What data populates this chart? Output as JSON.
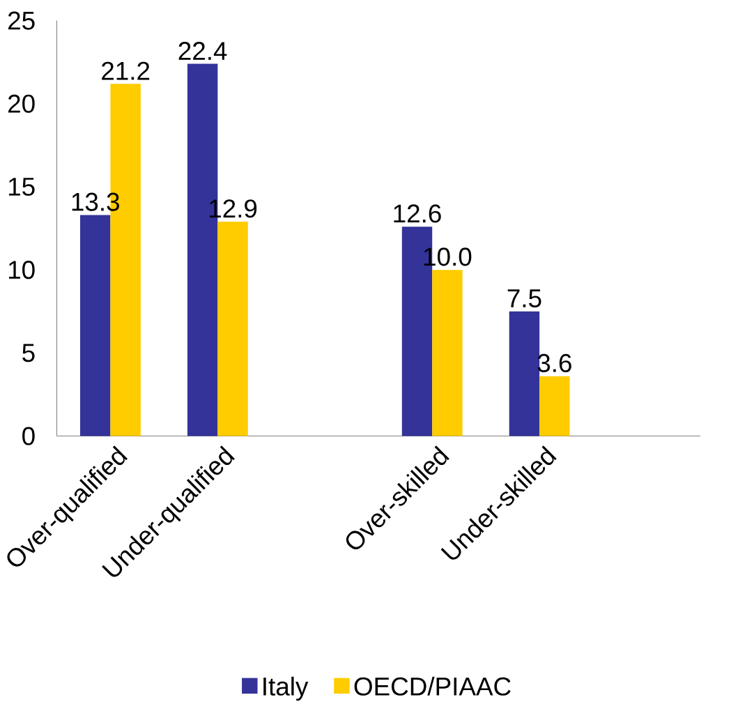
{
  "chart_data": {
    "type": "bar",
    "categories": [
      "Over-qualified",
      "Under-qualified",
      null,
      "Over-skilled",
      "Under-skilled",
      null
    ],
    "series": [
      {
        "name": "Italy",
        "color": "#333399",
        "values": [
          13.3,
          22.4,
          null,
          12.6,
          7.5,
          null
        ],
        "value_labels": [
          "13.3",
          "22.4",
          null,
          "12.6",
          "7.5",
          null
        ]
      },
      {
        "name": "OECD/PIAAC",
        "color": "#ffcc00",
        "values": [
          21.2,
          12.9,
          null,
          10.0,
          3.6,
          null
        ],
        "value_labels": [
          "21.2",
          "12.9",
          null,
          "10.0",
          "3.6",
          null
        ]
      }
    ],
    "ylim": [
      0,
      25
    ],
    "yticks": [
      0,
      5,
      10,
      15,
      20,
      25
    ],
    "grid": false,
    "legend": "bottom"
  }
}
